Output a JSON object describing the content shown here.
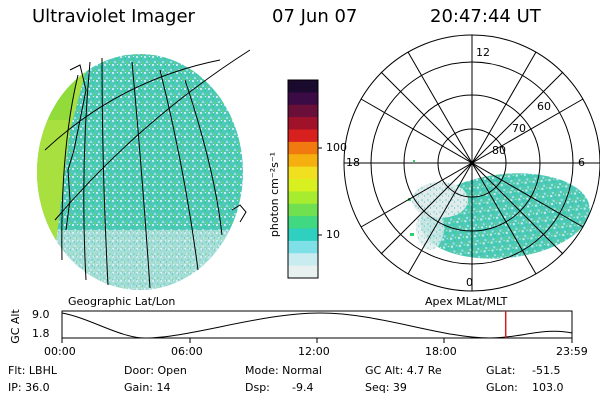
{
  "header": {
    "title": "Ultraviolet Imager",
    "date": "07 Jun 07",
    "time": "20:47:44 UT"
  },
  "colorbar": {
    "unit_label": "photon cm⁻²s⁻¹",
    "ticks": [
      "100",
      "10"
    ],
    "colors": [
      "#1a0a2e",
      "#3b0b45",
      "#6a0f3a",
      "#a0122a",
      "#d8201e",
      "#f07a10",
      "#f5b010",
      "#f0e020",
      "#d8f020",
      "#a8ec30",
      "#70e050",
      "#40d880",
      "#30d0c0",
      "#80e0e8",
      "#c8ecf0",
      "#e8f0f0"
    ]
  },
  "left_map": {
    "caption": "Geographic Lat/Lon"
  },
  "right_map": {
    "caption": "Apex MLat/MLT",
    "hour_labels": [
      "12",
      "18",
      "6",
      "0"
    ],
    "lat_labels": [
      "60",
      "70",
      "80"
    ]
  },
  "timeline": {
    "y_axis_label": "GC Alt",
    "y_ticks": [
      "9.0",
      "1.8"
    ],
    "x_ticks": [
      "00:00",
      "06:00",
      "12:00",
      "18:00",
      "23:59"
    ],
    "current_fraction": 0.87
  },
  "status": {
    "filter": "Flt: LBHL",
    "ip": "IP: 36.0",
    "door": "Door: Open",
    "gain": "Gain: 14",
    "mode": "Mode: Normal",
    "dsp_label": "Dsp:",
    "dsp_value": "-9.4",
    "gc_alt": "GC Alt: 4.7 Re",
    "seq": "Seq: 39",
    "glat_label": "GLat:",
    "glat_value": "-51.5",
    "glon_label": "GLon:",
    "glon_value": "103.0"
  },
  "accent": {
    "marker": "#cc2222"
  }
}
